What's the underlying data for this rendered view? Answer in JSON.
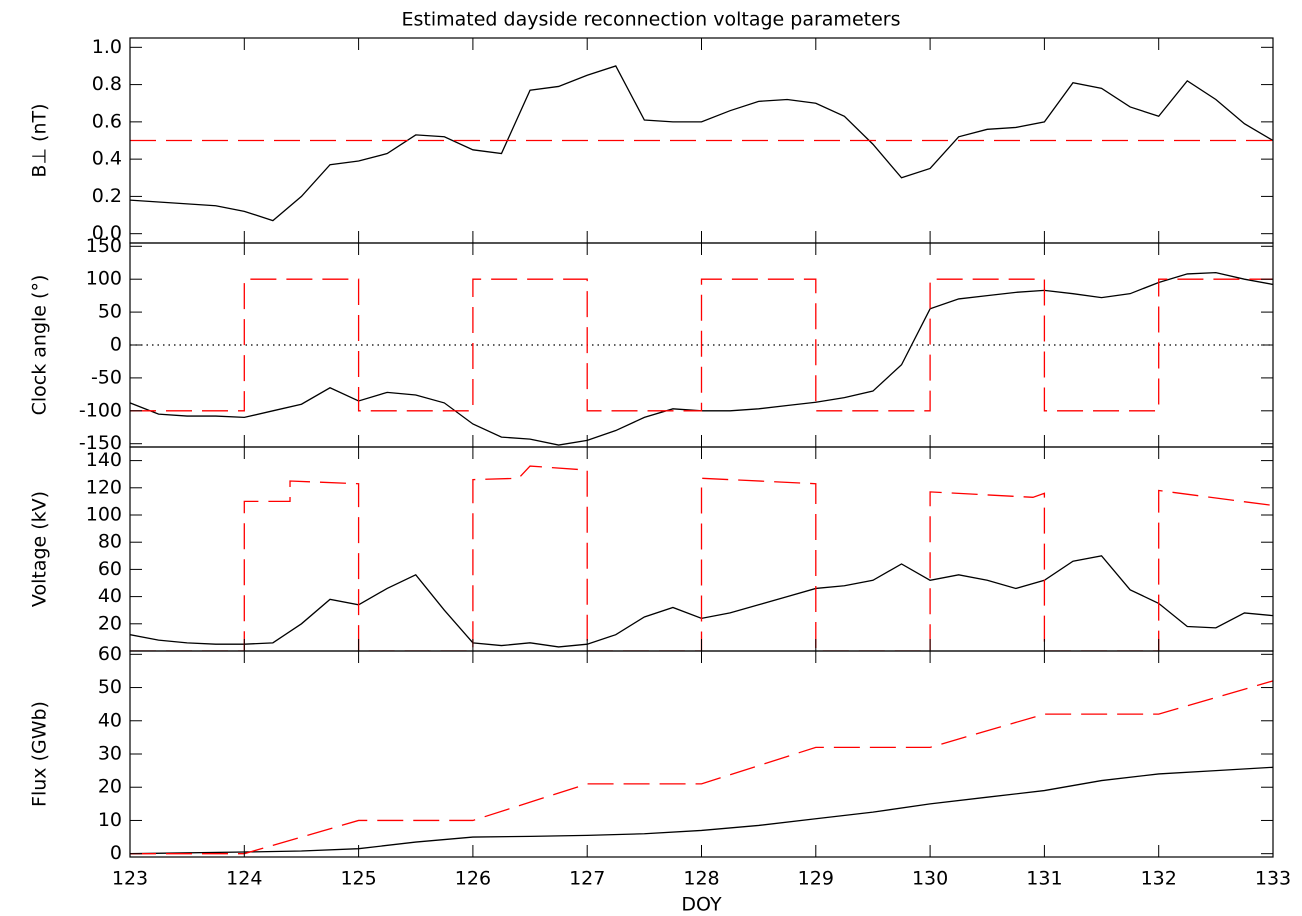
{
  "chart_data": [
    {
      "type": "line",
      "title": "Estimated dayside reconnection voltage parameters",
      "ylabel": "B⊥ (nT)",
      "xlim": [
        123,
        133
      ],
      "ylim": [
        -0.05,
        1.05
      ],
      "yticks": [
        {
          "value": 0,
          "label": "0.0"
        },
        0.2,
        0.4,
        0.6,
        0.8,
        {
          "value": 1,
          "label": "1.0"
        }
      ],
      "series": [
        {
          "color": "#000000",
          "dash": "solid",
          "x": [
            123,
            123.25,
            123.5,
            123.75,
            124,
            124.25,
            124.5,
            124.75,
            125,
            125.25,
            125.5,
            125.75,
            126,
            126.25,
            126.5,
            126.75,
            127,
            127.25,
            127.5,
            127.75,
            128,
            128.25,
            128.5,
            128.75,
            129,
            129.25,
            129.5,
            129.75,
            130,
            130.25,
            130.5,
            130.75,
            131,
            131.25,
            131.5,
            131.75,
            132,
            132.25,
            132.5,
            132.75,
            133
          ],
          "values": [
            0.18,
            0.17,
            0.16,
            0.15,
            0.12,
            0.07,
            0.2,
            0.37,
            0.39,
            0.43,
            0.53,
            0.52,
            0.45,
            0.43,
            0.77,
            0.79,
            0.85,
            0.9,
            0.61,
            0.6,
            0.6,
            0.66,
            0.71,
            0.72,
            0.7,
            0.63,
            0.48,
            0.3,
            0.35,
            0.52,
            0.56,
            0.57,
            0.6,
            0.81,
            0.78,
            0.68,
            0.63,
            0.82,
            0.72,
            0.59,
            0.5
          ]
        },
        {
          "color": "#ff0000",
          "dash": "dashed",
          "x": [
            123,
            133
          ],
          "values": [
            0.5,
            0.5
          ]
        }
      ]
    },
    {
      "type": "line",
      "ylabel": "Clock angle (°)",
      "xlim": [
        123,
        133
      ],
      "ylim": [
        -155,
        155
      ],
      "yticks": [
        -150,
        -100,
        -50,
        0,
        50,
        100,
        150
      ],
      "reference_line": 0,
      "series": [
        {
          "color": "#000000",
          "dash": "solid",
          "x": [
            123,
            123.25,
            123.5,
            123.75,
            124,
            124.25,
            124.5,
            124.75,
            125,
            125.25,
            125.5,
            125.75,
            126,
            126.25,
            126.5,
            126.75,
            127,
            127.25,
            127.5,
            127.75,
            128,
            128.25,
            128.5,
            128.75,
            129,
            129.25,
            129.5,
            129.75,
            130,
            130.25,
            130.5,
            130.75,
            131,
            131.25,
            131.5,
            131.75,
            132,
            132.25,
            132.5,
            132.75,
            133
          ],
          "values": [
            -88,
            -105,
            -108,
            -108,
            -110,
            -100,
            -90,
            -65,
            -85,
            -72,
            -76,
            -88,
            -120,
            -140,
            -143,
            -152,
            -145,
            -130,
            -110,
            -97,
            -100,
            -100,
            -97,
            -92,
            -87,
            -80,
            -70,
            -30,
            55,
            70,
            75,
            80,
            83,
            78,
            72,
            78,
            95,
            108,
            110,
            100,
            92
          ]
        },
        {
          "color": "#ff0000",
          "dash": "dashed",
          "x": [
            123,
            124,
            124,
            125,
            125,
            126,
            126,
            127,
            127,
            128,
            128,
            129,
            129,
            130,
            130,
            131,
            131,
            132,
            132,
            133
          ],
          "values": [
            -100,
            -100,
            100,
            100,
            -100,
            -100,
            100,
            100,
            -100,
            -100,
            100,
            100,
            -100,
            -100,
            100,
            100,
            -100,
            -100,
            100,
            100
          ]
        }
      ]
    },
    {
      "type": "line",
      "ylabel": "Voltage (kV)",
      "xlim": [
        123,
        133
      ],
      "ylim": [
        0,
        150
      ],
      "yticks": [
        20,
        40,
        60,
        80,
        100,
        120,
        140
      ],
      "series": [
        {
          "color": "#000000",
          "dash": "solid",
          "x": [
            123,
            123.25,
            123.5,
            123.75,
            124,
            124.25,
            124.5,
            124.75,
            125,
            125.25,
            125.5,
            125.75,
            126,
            126.25,
            126.5,
            126.75,
            127,
            127.25,
            127.5,
            127.75,
            128,
            128.25,
            128.5,
            128.75,
            129,
            129.25,
            129.5,
            129.75,
            130,
            130.25,
            130.5,
            130.75,
            131,
            131.25,
            131.5,
            131.75,
            132,
            132.25,
            132.5,
            132.75,
            133
          ],
          "values": [
            12,
            8,
            6,
            5,
            5,
            6,
            20,
            38,
            34,
            46,
            56,
            30,
            6,
            4,
            6,
            3,
            5,
            12,
            25,
            32,
            24,
            28,
            34,
            40,
            46,
            48,
            52,
            64,
            52,
            56,
            52,
            46,
            52,
            66,
            70,
            45,
            35,
            18,
            17,
            28,
            26
          ]
        },
        {
          "color": "#ff0000",
          "dash": "dashed",
          "x": [
            123,
            124,
            124,
            124.4,
            124.4,
            125,
            125,
            126,
            126,
            126.4,
            126.5,
            127,
            127,
            128,
            128,
            129,
            129,
            130,
            130,
            130.9,
            131,
            131,
            132,
            132,
            133
          ],
          "values": [
            0,
            0,
            110,
            110,
            125,
            123,
            0,
            0,
            126,
            127,
            136,
            133,
            0,
            0,
            127,
            123,
            0,
            0,
            117,
            113,
            116,
            0,
            0,
            118,
            107
          ]
        }
      ]
    },
    {
      "type": "line",
      "ylabel": "Flux (GWb)",
      "xlabel": "DOY",
      "xlim": [
        123,
        133
      ],
      "ylim": [
        -1,
        61
      ],
      "yticks": [
        0,
        10,
        20,
        30,
        40,
        50,
        60
      ],
      "xticks": [
        123,
        124,
        125,
        126,
        127,
        128,
        129,
        130,
        131,
        132,
        133
      ],
      "series": [
        {
          "color": "#000000",
          "dash": "solid",
          "x": [
            123,
            124,
            124.5,
            125,
            125.5,
            126,
            126.5,
            127,
            127.5,
            128,
            128.5,
            129,
            129.5,
            130,
            130.5,
            131,
            131.5,
            132,
            132.5,
            133
          ],
          "values": [
            0,
            0.5,
            0.8,
            1.5,
            3.5,
            5,
            5.2,
            5.5,
            6,
            7,
            8.5,
            10.5,
            12.5,
            15,
            17,
            19,
            22,
            24,
            25,
            26
          ]
        },
        {
          "color": "#ff0000",
          "dash": "dashed",
          "x": [
            123,
            124,
            125,
            126,
            127,
            128,
            129,
            130,
            131,
            132,
            133
          ],
          "values": [
            0,
            0,
            10,
            10,
            21,
            21,
            32,
            32,
            42,
            42,
            52
          ]
        }
      ]
    }
  ]
}
